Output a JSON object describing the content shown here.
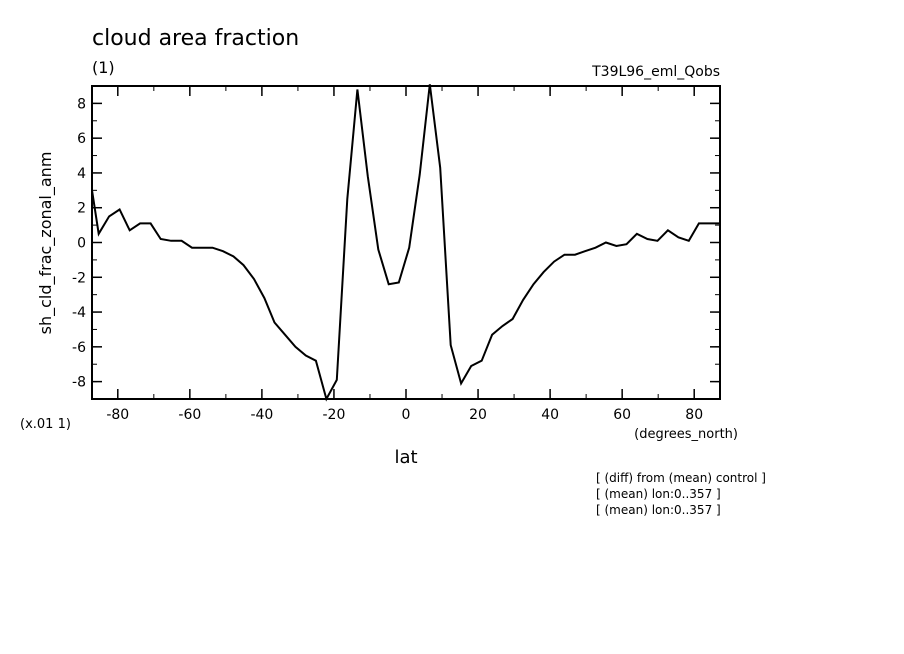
{
  "chart_data": {
    "type": "line",
    "title": "cloud area fraction",
    "subtitle": "(1)",
    "experiment": "T39L96_eml_Qobs",
    "xlabel": "lat",
    "xunits": "(degrees_north)",
    "ylabel": "sh_cld_frac_zonal_anm",
    "yscale_label": "(x.01 1)",
    "xlim": [
      -87.16,
      87.16
    ],
    "ylim": [
      -9,
      9
    ],
    "x_ticks": [
      -80,
      -60,
      -40,
      -20,
      0,
      20,
      40,
      60,
      80
    ],
    "x_tick_labels": [
      "-80",
      "-60",
      "-40",
      "-20",
      "0",
      "20",
      "40",
      "60",
      "80"
    ],
    "y_ticks": [
      -8,
      -6,
      -4,
      -2,
      0,
      2,
      4,
      6,
      8
    ],
    "y_tick_labels": [
      "-8",
      "-6",
      "-4",
      "-2",
      "0",
      "2",
      "4",
      "6",
      "8"
    ],
    "grid": false,
    "notes": [
      "[ (diff) from (mean) control ]",
      "[ (mean) lon:0..357 ]",
      "[ (mean) lon:0..357 ]"
    ],
    "x": [
      -87.16,
      -85.3,
      -82.4,
      -79.5,
      -76.7,
      -73.8,
      -70.9,
      -68.1,
      -65.2,
      -62.3,
      -59.4,
      -56.6,
      -53.7,
      -50.8,
      -47.9,
      -45.1,
      -42.2,
      -39.3,
      -36.5,
      -33.6,
      -30.7,
      -27.8,
      -25.0,
      -22.1,
      -19.2,
      -16.3,
      -13.5,
      -10.6,
      -7.7,
      -4.8,
      -2.0,
      0.9,
      3.8,
      6.6,
      9.5,
      12.4,
      15.3,
      18.1,
      21.0,
      23.9,
      26.8,
      29.6,
      32.5,
      35.4,
      38.2,
      41.1,
      44.0,
      46.9,
      49.7,
      52.6,
      55.5,
      58.4,
      61.2,
      64.1,
      67.0,
      69.8,
      72.7,
      75.6,
      78.5,
      81.3,
      84.2,
      87.16
    ],
    "y": [
      3.0,
      0.5,
      1.5,
      1.9,
      0.7,
      1.1,
      1.1,
      0.2,
      0.1,
      0.1,
      -0.3,
      -0.3,
      -0.3,
      -0.5,
      -0.8,
      -1.3,
      -2.1,
      -3.2,
      -4.6,
      -5.3,
      -6.0,
      -6.5,
      -6.8,
      -9.0,
      -7.9,
      2.5,
      8.8,
      3.8,
      -0.4,
      -2.4,
      -2.3,
      -0.3,
      3.9,
      9.1,
      4.3,
      -5.9,
      -8.1,
      -7.1,
      -6.8,
      -5.3,
      -4.8,
      -4.4,
      -3.3,
      -2.4,
      -1.7,
      -1.1,
      -0.7,
      -0.7,
      -0.5,
      -0.3,
      0.0,
      -0.2,
      -0.1,
      0.5,
      0.2,
      0.1,
      0.7,
      0.3,
      0.1,
      1.1,
      1.1,
      1.1
    ]
  }
}
